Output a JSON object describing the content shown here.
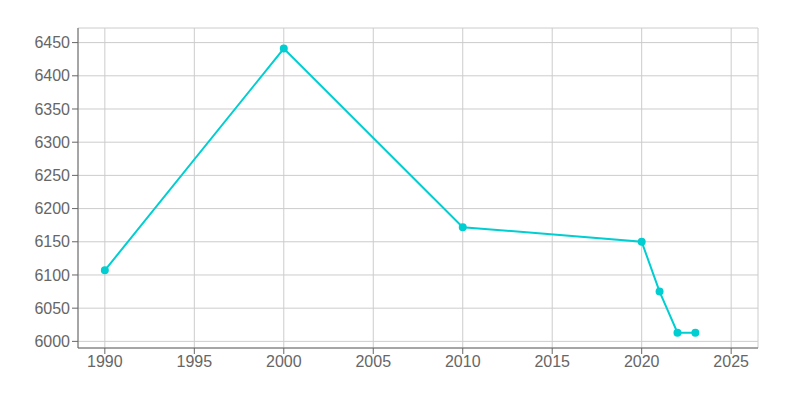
{
  "chart_data": {
    "type": "line",
    "x": [
      1990,
      2000,
      2010,
      2020,
      2021,
      2022,
      2023
    ],
    "values": [
      6107,
      6441,
      6172,
      6150,
      6075,
      6013,
      6013
    ],
    "color": "#00CED1",
    "marker": "circle",
    "xlim": [
      1988.5,
      2026.5
    ],
    "ylim": [
      5990,
      6472
    ],
    "xticks": [
      1990,
      1995,
      2000,
      2005,
      2010,
      2015,
      2020,
      2025
    ],
    "yticks": [
      6000,
      6050,
      6100,
      6150,
      6200,
      6250,
      6300,
      6350,
      6400,
      6450
    ],
    "grid": true
  }
}
